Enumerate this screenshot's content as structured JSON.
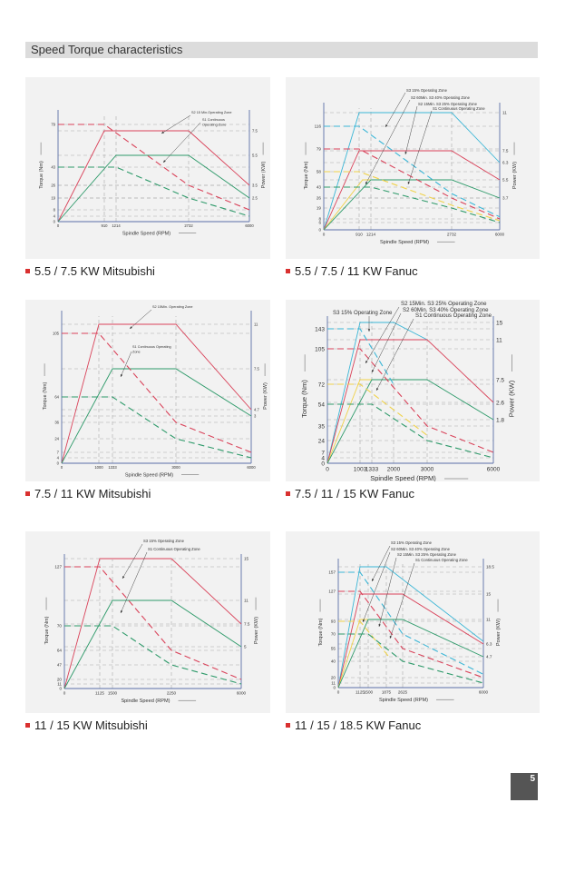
{
  "header": {
    "title": "Speed Torque characteristics"
  },
  "page_number": "5",
  "colors": {
    "red": "#d9435a",
    "green": "#2e9a6a",
    "cyan": "#3bb6d6",
    "yellow": "#f0d24a",
    "grid": "#a8a8a8",
    "axis": "#5a6fa8",
    "bullet": "#d9302f"
  },
  "chart_data": [
    {
      "type": "line",
      "caption": "5.5 / 7.5 KW Mitsubishi",
      "xlabel": "Spindle Speed (RPM)",
      "ylabel": "Torque (Nm)",
      "y2label": "Power (KW)",
      "x_ticks": [
        "0",
        "910",
        "1214",
        "2732",
        "6000"
      ],
      "torque_ticks": [
        "79",
        "43",
        "26",
        "19",
        "8",
        "4",
        "0"
      ],
      "power_ticks": [
        "7.5",
        "5.5",
        "3.5",
        "2.5"
      ],
      "annotations": [
        [
          "S2 15 Min.Operating Zone"
        ],
        [
          "S1 Continuous",
          "Operating Zone"
        ]
      ],
      "series": [
        {
          "color": "red",
          "axis": "power",
          "style": "solid",
          "points": [
            [
              0,
              0
            ],
            [
              910,
              7.5
            ],
            [
              2732,
              7.5
            ],
            [
              6000,
              3.5
            ]
          ]
        },
        {
          "color": "green",
          "axis": "power",
          "style": "solid",
          "points": [
            [
              0,
              0
            ],
            [
              1214,
              5.5
            ],
            [
              2732,
              5.5
            ],
            [
              6000,
              2.5
            ]
          ]
        },
        {
          "color": "red",
          "axis": "torque",
          "style": "dashed",
          "points": [
            [
              0,
              79
            ],
            [
              910,
              79
            ],
            [
              2732,
              26
            ],
            [
              6000,
              8
            ]
          ]
        },
        {
          "color": "green",
          "axis": "torque",
          "style": "dashed",
          "points": [
            [
              0,
              43
            ],
            [
              1214,
              43
            ],
            [
              2732,
              19
            ],
            [
              6000,
              4
            ]
          ]
        }
      ]
    },
    {
      "type": "line",
      "caption": "5.5 / 7.5 / 11 KW Fanuc",
      "xlabel": "Spindle Speed (RPM)",
      "ylabel": "Torque (Nm)",
      "y2label": "Power (KW)",
      "x_ticks": [
        "0",
        "910",
        "1214",
        "2732",
        "6000"
      ],
      "torque_ticks": [
        "116",
        "79",
        "58",
        "43",
        "26",
        "19",
        "8",
        "6",
        "0"
      ],
      "power_ticks": [
        "11",
        "7.5",
        "6.3",
        "5.5",
        "3.7"
      ],
      "annotations": [
        [
          "S3 15% Operating Zone"
        ],
        [
          "S2 60Min. S3 40% Operating Zone"
        ],
        [
          "S2 15Min. S3 25% Operating Zone"
        ],
        [
          "S1 Continuous Operating Zone"
        ]
      ],
      "series": [
        {
          "color": "cyan",
          "axis": "power",
          "style": "solid",
          "points": [
            [
              0,
              0
            ],
            [
              910,
              11
            ],
            [
              2732,
              11
            ],
            [
              6000,
              6.3
            ]
          ]
        },
        {
          "color": "red",
          "axis": "power",
          "style": "solid",
          "points": [
            [
              0,
              0
            ],
            [
              910,
              7.5
            ],
            [
              2732,
              7.5
            ],
            [
              6000,
              5.5
            ]
          ]
        },
        {
          "color": "yellow",
          "axis": "power",
          "style": "solid",
          "points": [
            [
              0,
              0
            ],
            [
              1000,
              5.5
            ],
            [
              1214,
              5.5
            ]
          ]
        },
        {
          "color": "green",
          "axis": "power",
          "style": "solid",
          "points": [
            [
              0,
              0
            ],
            [
              1214,
              5.5
            ],
            [
              2732,
              5.5
            ],
            [
              6000,
              3.7
            ]
          ]
        },
        {
          "color": "cyan",
          "axis": "torque",
          "style": "dashed",
          "points": [
            [
              0,
              116
            ],
            [
              910,
              116
            ],
            [
              2732,
              33
            ],
            [
              6000,
              10
            ]
          ]
        },
        {
          "color": "red",
          "axis": "torque",
          "style": "dashed",
          "points": [
            [
              0,
              79
            ],
            [
              910,
              79
            ],
            [
              2732,
              26
            ],
            [
              6000,
              8
            ]
          ]
        },
        {
          "color": "yellow",
          "axis": "torque",
          "style": "dashed",
          "points": [
            [
              0,
              58
            ],
            [
              910,
              58
            ],
            [
              2732,
              21
            ],
            [
              6000,
              7
            ]
          ]
        },
        {
          "color": "green",
          "axis": "torque",
          "style": "dashed",
          "points": [
            [
              0,
              43
            ],
            [
              1214,
              43
            ],
            [
              2732,
              19
            ],
            [
              6000,
              6
            ]
          ]
        }
      ]
    },
    {
      "type": "line",
      "caption": "7.5 / 11 KW Mitsubishi",
      "xlabel": "Spindle Speed (RPM)",
      "ylabel": "Torque (Nm)",
      "y2label": "Power (KW)",
      "x_ticks": [
        "0",
        "1000",
        "1333",
        "3000",
        "6000"
      ],
      "torque_ticks": [
        "105",
        "64",
        "36",
        "24",
        "7",
        "4",
        "0"
      ],
      "power_ticks": [
        "11",
        "7.5",
        "4.7",
        "3"
      ],
      "annotations": [
        [
          "S2 15Min. Operating Zone"
        ],
        [
          "S1 Continuous Operating",
          "Zone"
        ]
      ],
      "series": [
        {
          "color": "red",
          "axis": "power",
          "style": "solid",
          "points": [
            [
              0,
              0
            ],
            [
              1000,
              11
            ],
            [
              3000,
              11
            ],
            [
              6000,
              4.7
            ]
          ]
        },
        {
          "color": "green",
          "axis": "power",
          "style": "solid",
          "points": [
            [
              0,
              0
            ],
            [
              1333,
              7.5
            ],
            [
              3000,
              7.5
            ],
            [
              6000,
              3
            ]
          ]
        },
        {
          "color": "red",
          "axis": "torque",
          "style": "dashed",
          "points": [
            [
              0,
              105
            ],
            [
              1000,
              105
            ],
            [
              3000,
              36
            ],
            [
              6000,
              7
            ]
          ]
        },
        {
          "color": "green",
          "axis": "torque",
          "style": "dashed",
          "points": [
            [
              0,
              64
            ],
            [
              1333,
              64
            ],
            [
              3000,
              24
            ],
            [
              6000,
              4
            ]
          ]
        }
      ]
    },
    {
      "type": "line",
      "caption": "7.5 / 11 / 15 KW Fanuc",
      "xlabel": "Spindle Speed (RPM)",
      "ylabel": "Torque (Nm)",
      "y2label": "Power (KW)",
      "x_ticks": [
        "0",
        "1003",
        "1333",
        "2000",
        "3000",
        "6000"
      ],
      "torque_ticks": [
        "143",
        "105",
        "72",
        "54",
        "35",
        "24",
        "7",
        "4",
        "0"
      ],
      "power_ticks": [
        "15",
        "11",
        "7.5",
        "2.6",
        "1.8"
      ],
      "annotations": [
        [
          "S3 15% Operating Zone"
        ],
        [
          "S2 15Min. S3 25% Operating Zone"
        ],
        [
          "S2 60Min. S3 40% Operating Zone"
        ],
        [
          "S1 Continuous Operating Zone"
        ]
      ],
      "series": [
        {
          "color": "cyan",
          "axis": "power",
          "style": "solid",
          "points": [
            [
              0,
              0
            ],
            [
              1003,
              15
            ],
            [
              2000,
              15
            ],
            [
              3000,
              11
            ]
          ]
        },
        {
          "color": "red",
          "axis": "power",
          "style": "solid",
          "points": [
            [
              0,
              0
            ],
            [
              1003,
              11
            ],
            [
              3000,
              11
            ],
            [
              6000,
              2.6
            ]
          ]
        },
        {
          "color": "yellow",
          "axis": "power",
          "style": "solid",
          "points": [
            [
              0,
              0
            ],
            [
              1003,
              7.5
            ],
            [
              1333,
              7.5
            ]
          ]
        },
        {
          "color": "green",
          "axis": "power",
          "style": "solid",
          "points": [
            [
              0,
              0
            ],
            [
              1333,
              7.5
            ],
            [
              3000,
              7.5
            ],
            [
              6000,
              1.8
            ]
          ]
        },
        {
          "color": "cyan",
          "axis": "torque",
          "style": "dashed",
          "points": [
            [
              0,
              143
            ],
            [
              1003,
              143
            ],
            [
              2000,
              72
            ]
          ]
        },
        {
          "color": "red",
          "axis": "torque",
          "style": "dashed",
          "points": [
            [
              0,
              105
            ],
            [
              1003,
              105
            ],
            [
              3000,
              35
            ],
            [
              6000,
              7
            ]
          ]
        },
        {
          "color": "yellow",
          "axis": "torque",
          "style": "dashed",
          "points": [
            [
              0,
              72
            ],
            [
              1003,
              72
            ],
            [
              3000,
              28
            ]
          ]
        },
        {
          "color": "green",
          "axis": "torque",
          "style": "dashed",
          "points": [
            [
              0,
              54
            ],
            [
              1333,
              54
            ],
            [
              3000,
              24
            ],
            [
              6000,
              4
            ]
          ]
        }
      ]
    },
    {
      "type": "line",
      "caption": "11 / 15 KW Mitsubishi",
      "xlabel": "Spindle Speed (RPM)",
      "ylabel": "Torque (Nm)",
      "y2label": "Power (KW)",
      "x_ticks": [
        "0",
        "1125",
        "1500",
        "2250",
        "6000"
      ],
      "torque_ticks": [
        "127",
        "70",
        "64",
        "47",
        "20",
        "11",
        "0"
      ],
      "power_ticks": [
        "15",
        "11",
        "7.5",
        "5"
      ],
      "annotations": [
        [
          "S3 15% Operating Zone"
        ],
        [
          "S1 Continuous Operating Zone"
        ]
      ],
      "series": [
        {
          "color": "red",
          "axis": "power",
          "style": "solid",
          "points": [
            [
              0,
              0
            ],
            [
              1125,
              15
            ],
            [
              2250,
              15
            ],
            [
              6000,
              7.5
            ]
          ]
        },
        {
          "color": "green",
          "axis": "power",
          "style": "solid",
          "points": [
            [
              0,
              0
            ],
            [
              1500,
              11
            ],
            [
              2250,
              11
            ],
            [
              6000,
              5
            ]
          ]
        },
        {
          "color": "red",
          "axis": "torque",
          "style": "dashed",
          "points": [
            [
              0,
              127
            ],
            [
              1125,
              127
            ],
            [
              2250,
              64
            ],
            [
              6000,
              20
            ]
          ]
        },
        {
          "color": "green",
          "axis": "torque",
          "style": "dashed",
          "points": [
            [
              0,
              70
            ],
            [
              1500,
              70
            ],
            [
              2250,
              47
            ],
            [
              6000,
              11
            ]
          ]
        }
      ]
    },
    {
      "type": "line",
      "caption": "11 / 15 / 18.5 KW Fanuc",
      "xlabel": "Spindle Speed (RPM)",
      "ylabel": "Torque (Nm)",
      "y2label": "Power (KW)",
      "x_ticks": [
        "0",
        "1125",
        "1500",
        "1875",
        "2625",
        "6000"
      ],
      "torque_ticks": [
        "157",
        "127",
        "93",
        "70",
        "55",
        "40",
        "20",
        "11",
        "0"
      ],
      "power_ticks": [
        "18.5",
        "15",
        "11",
        "6.3",
        "4.7"
      ],
      "annotations": [
        [
          "S3 15% Operating Zone"
        ],
        [
          "S2 60Min. S3 40% Operating Zone"
        ],
        [
          "S2 15Min. S3 25% Operating Zone"
        ],
        [
          "S1 Continuous Operating Zone"
        ]
      ],
      "series": [
        {
          "color": "cyan",
          "axis": "power",
          "style": "solid",
          "points": [
            [
              0,
              0
            ],
            [
              1125,
              18.5
            ],
            [
              1875,
              18.5
            ],
            [
              6000,
              6.8
            ]
          ]
        },
        {
          "color": "red",
          "axis": "power",
          "style": "solid",
          "points": [
            [
              0,
              0
            ],
            [
              1125,
              15
            ],
            [
              2625,
              15
            ],
            [
              6000,
              6.3
            ]
          ]
        },
        {
          "color": "yellow",
          "axis": "power",
          "style": "solid",
          "points": [
            [
              0,
              0
            ],
            [
              1125,
              11
            ],
            [
              1500,
              11
            ]
          ]
        },
        {
          "color": "green",
          "axis": "power",
          "style": "solid",
          "points": [
            [
              0,
              0
            ],
            [
              1500,
              11
            ],
            [
              2625,
              11
            ],
            [
              6000,
              4.7
            ]
          ]
        },
        {
          "color": "cyan",
          "axis": "torque",
          "style": "dashed",
          "points": [
            [
              0,
              157
            ],
            [
              1125,
              157
            ],
            [
              2625,
              70
            ],
            [
              6000,
              24
            ]
          ]
        },
        {
          "color": "red",
          "axis": "torque",
          "style": "dashed",
          "points": [
            [
              0,
              127
            ],
            [
              1125,
              127
            ],
            [
              2625,
              55
            ],
            [
              6000,
              20
            ]
          ]
        },
        {
          "color": "yellow",
          "axis": "torque",
          "style": "dashed",
          "points": [
            [
              0,
              93
            ],
            [
              1125,
              93
            ],
            [
              2000,
              45
            ]
          ]
        },
        {
          "color": "green",
          "axis": "torque",
          "style": "dashed",
          "points": [
            [
              0,
              70
            ],
            [
              1500,
              70
            ],
            [
              2625,
              40
            ],
            [
              6000,
              11
            ]
          ]
        }
      ]
    }
  ]
}
